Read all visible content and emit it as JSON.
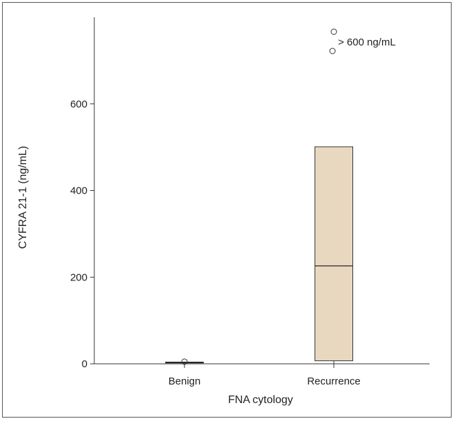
{
  "chart_data": {
    "type": "box",
    "xlabel": "FNA cytology",
    "ylabel": "CYFRA 21-1 (ng/mL)",
    "ylim": [
      0,
      800
    ],
    "yticks": [
      0,
      200,
      400,
      600
    ],
    "categories": [
      "Benign",
      "Recurrence"
    ],
    "boxes": [
      {
        "category": "Benign",
        "min": 2,
        "q1": 2,
        "median": 3,
        "q3": 4,
        "max": 4,
        "outliers": [
          5
        ]
      },
      {
        "category": "Recurrence",
        "min": 0,
        "q1": 7,
        "median": 226,
        "q3": 501,
        "max": 501,
        "outliers": []
      }
    ],
    "offscale_points": {
      "category": "Recurrence",
      "label": "> 600 ng/mL",
      "count": 2
    },
    "box_fill": "#e9d8c0",
    "grid": false
  }
}
